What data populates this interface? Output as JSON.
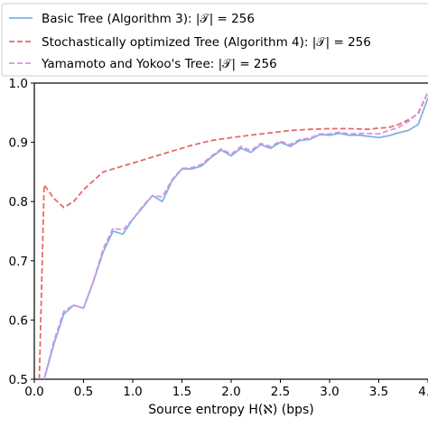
{
  "chart_data": {
    "type": "line",
    "title": "",
    "xlabel": "Source entropy H(ℵ) (bps)",
    "ylabel": "",
    "xlim": [
      0,
      4
    ],
    "ylim": [
      0.5,
      1.0
    ],
    "x_ticks": [
      "0.0",
      "0.5",
      "1.0",
      "1.5",
      "2.0",
      "2.5",
      "3.0",
      "3.5",
      "4.0"
    ],
    "y_ticks": [
      "0.5",
      "0.6",
      "0.7",
      "0.8",
      "0.9",
      "1.0"
    ],
    "grid": false,
    "legend_position": "top-left, above plot",
    "series": [
      {
        "name": "Basic Tree (Algorithm 3): |𝒯| = 256",
        "color": "#7fb3e0",
        "style": "solid",
        "x": [
          0.08,
          0.1,
          0.2,
          0.3,
          0.4,
          0.5,
          0.6,
          0.7,
          0.8,
          0.9,
          1.0,
          1.1,
          1.2,
          1.3,
          1.4,
          1.5,
          1.6,
          1.7,
          1.8,
          1.9,
          2.0,
          2.1,
          2.2,
          2.3,
          2.4,
          2.5,
          2.6,
          2.7,
          2.8,
          2.9,
          3.0,
          3.1,
          3.2,
          3.3,
          3.4,
          3.5,
          3.6,
          3.7,
          3.8,
          3.9,
          4.0
        ],
        "values": [
          0.49,
          0.5,
          0.56,
          0.61,
          0.625,
          0.62,
          0.665,
          0.715,
          0.75,
          0.745,
          0.77,
          0.79,
          0.81,
          0.8,
          0.835,
          0.855,
          0.855,
          0.86,
          0.875,
          0.887,
          0.877,
          0.89,
          0.883,
          0.896,
          0.89,
          0.9,
          0.893,
          0.903,
          0.905,
          0.913,
          0.912,
          0.915,
          0.912,
          0.912,
          0.91,
          0.908,
          0.911,
          0.916,
          0.92,
          0.93,
          0.975
        ]
      },
      {
        "name": "Stochastically optimized Tree (Algorithm 4): |𝒯| = 256",
        "color": "#e8696b",
        "style": "dashed",
        "x": [
          0.05,
          0.1,
          0.2,
          0.3,
          0.4,
          0.5,
          0.6,
          0.7,
          0.8,
          0.9,
          1.0,
          1.2,
          1.4,
          1.6,
          1.8,
          2.0,
          2.2,
          2.4,
          2.6,
          2.8,
          3.0,
          3.2,
          3.4,
          3.5,
          3.6,
          3.7,
          3.8,
          3.9,
          4.0
        ],
        "values": [
          0.5,
          0.828,
          0.805,
          0.79,
          0.8,
          0.82,
          0.835,
          0.85,
          0.855,
          0.86,
          0.865,
          0.875,
          0.885,
          0.895,
          0.903,
          0.908,
          0.912,
          0.916,
          0.92,
          0.922,
          0.923,
          0.923,
          0.922,
          0.924,
          0.925,
          0.93,
          0.938,
          0.948,
          0.985
        ]
      },
      {
        "name": "Yamamoto and Yokoo's Tree: |𝒯| = 256",
        "color": "#d991e6",
        "style": "dashed",
        "x": [
          0.08,
          0.1,
          0.2,
          0.3,
          0.4,
          0.5,
          0.6,
          0.7,
          0.8,
          0.9,
          1.0,
          1.1,
          1.2,
          1.3,
          1.4,
          1.5,
          1.6,
          1.7,
          1.8,
          1.9,
          2.0,
          2.1,
          2.2,
          2.3,
          2.4,
          2.5,
          2.6,
          2.7,
          2.8,
          2.9,
          3.0,
          3.1,
          3.2,
          3.3,
          3.4,
          3.5,
          3.6,
          3.7,
          3.8,
          3.9,
          4.0
        ],
        "values": [
          0.49,
          0.5,
          0.565,
          0.615,
          0.625,
          0.62,
          0.665,
          0.72,
          0.755,
          0.752,
          0.77,
          0.792,
          0.81,
          0.808,
          0.837,
          0.856,
          0.857,
          0.863,
          0.877,
          0.889,
          0.88,
          0.893,
          0.886,
          0.898,
          0.893,
          0.902,
          0.896,
          0.905,
          0.907,
          0.914,
          0.914,
          0.917,
          0.914,
          0.915,
          0.915,
          0.914,
          0.92,
          0.925,
          0.935,
          0.95,
          0.985
        ]
      }
    ]
  }
}
